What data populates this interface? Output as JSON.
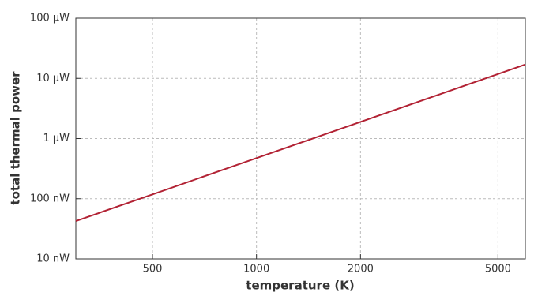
{
  "chart_data": {
    "type": "line",
    "xlabel": "temperature (K)",
    "ylabel": "total thermal power",
    "x": [
      300,
      500,
      1000,
      2000,
      5000,
      6000
    ],
    "series": [
      {
        "color": "#b22234",
        "values": [
          4.26e-08,
          1.18e-07,
          4.73e-07,
          1.89e-06,
          1.18e-05,
          1.7e-05
        ]
      }
    ],
    "xlim": [
      300,
      6000
    ],
    "ylim": [
      1e-08,
      0.0001
    ],
    "xscale": "log",
    "yscale": "log",
    "xticks": [
      500,
      1000,
      2000,
      5000
    ],
    "yticks": [
      {
        "value": 1e-08,
        "label": "10 nW"
      },
      {
        "value": 1e-07,
        "label": "100 nW"
      },
      {
        "value": 1e-06,
        "label": "1 µW"
      },
      {
        "value": 1e-05,
        "label": "10 µW"
      },
      {
        "value": 0.0001,
        "label": "100 µW"
      }
    ],
    "grid": true
  }
}
